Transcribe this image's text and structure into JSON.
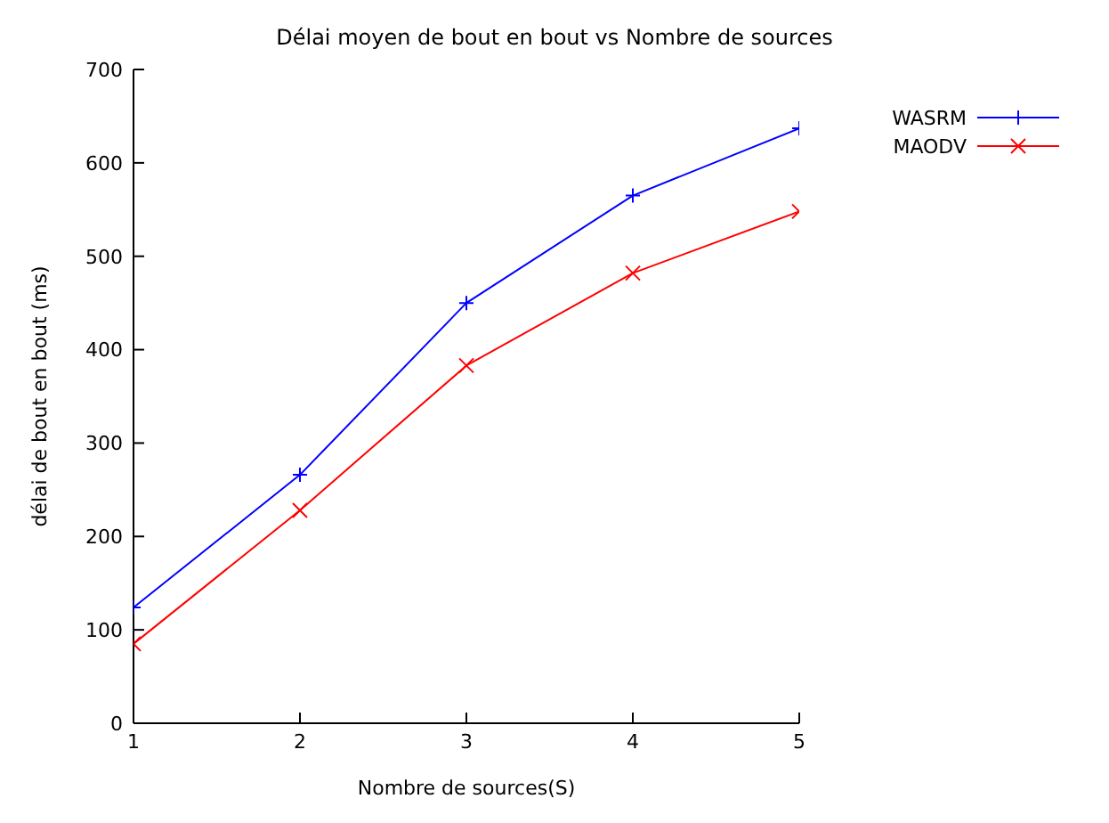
{
  "chart_data": {
    "type": "line",
    "title": "Délai moyen de bout en bout vs Nombre de sources",
    "xlabel": "Nombre de sources(S)",
    "ylabel": "délai de bout en bout (ms)",
    "x": [
      1,
      2,
      3,
      4,
      5
    ],
    "xlim": [
      1,
      5
    ],
    "xticks": [
      1,
      2,
      3,
      4,
      5
    ],
    "ylim": [
      0,
      700
    ],
    "yticks": [
      0,
      100,
      200,
      300,
      400,
      500,
      600,
      700
    ],
    "series": [
      {
        "name": "WASRM",
        "color": "#0000ff",
        "values": [
          124,
          266,
          450,
          565,
          637
        ]
      },
      {
        "name": "MAODV",
        "color": "#ff0000",
        "values": [
          85,
          228,
          383,
          482,
          548
        ]
      }
    ],
    "marker": "cross",
    "legend": "top right",
    "grid": false
  }
}
